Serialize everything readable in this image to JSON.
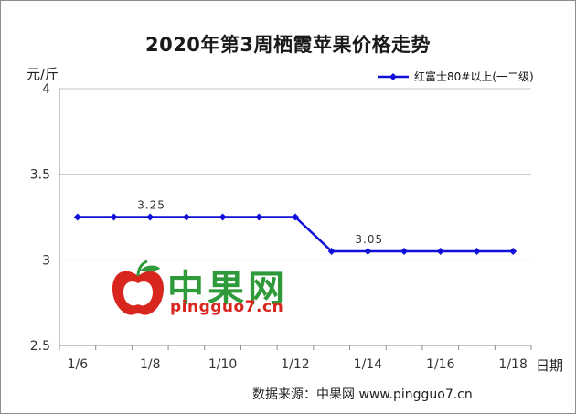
{
  "chart_data": {
    "type": "line",
    "title": "2020年第3周栖霞苹果价格走势",
    "ylabel": "元/斤",
    "xlabel": "日期",
    "ylim": [
      2.5,
      4
    ],
    "yticks": [
      "2.5",
      "3",
      "3.5",
      "4"
    ],
    "xtick_labels": [
      "1/6",
      "1/8",
      "1/10",
      "1/12",
      "1/14",
      "1/16",
      "1/18"
    ],
    "x": [
      "1/6",
      "1/7",
      "1/8",
      "1/9",
      "1/10",
      "1/11",
      "1/12",
      "1/13",
      "1/14",
      "1/15",
      "1/16",
      "1/17",
      "1/18"
    ],
    "series": [
      {
        "name": "红富士80#以上(一二级)",
        "values": [
          3.25,
          3.25,
          3.25,
          3.25,
          3.25,
          3.25,
          3.25,
          3.05,
          3.05,
          3.05,
          3.05,
          3.05,
          3.05
        ],
        "color": "#1010d8"
      }
    ],
    "data_labels": [
      {
        "x": "1/8",
        "text": "3.25"
      },
      {
        "x": "1/14",
        "text": "3.05"
      }
    ],
    "legend_position": "top-right",
    "grid": "horizontal"
  },
  "watermark": {
    "name_cn": "中果网",
    "domain": "pingguo7.cn",
    "colors": {
      "green": "#2f9a3a",
      "red": "#d8261e"
    }
  },
  "source_text": "数据来源：中果网 www.pingguo7.cn"
}
